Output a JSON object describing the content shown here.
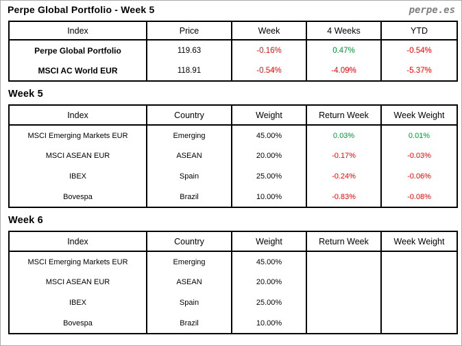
{
  "page": {
    "title": "Perpe Global Portfolio - Week 5",
    "brand": "perpe.es"
  },
  "colors": {
    "positive": "#009933",
    "negative": "#ff0000",
    "brand_gray": "#808080"
  },
  "summary_table": {
    "headers": [
      "Index",
      "Price",
      "Week",
      "4 Weeks",
      "YTD"
    ],
    "rows": [
      {
        "index": "Perpe Global Portfolio",
        "price": "119.63",
        "week": "-0.16%",
        "four_weeks": "0.47%",
        "ytd": "-0.54%"
      },
      {
        "index": "MSCI AC World EUR",
        "price": "118.91",
        "week": "-0.54%",
        "four_weeks": "-4.09%",
        "ytd": "-5.37%"
      }
    ]
  },
  "week5": {
    "heading": "Week 5",
    "headers": [
      "Index",
      "Country",
      "Weight",
      "Return Week",
      "Week Weight"
    ],
    "rows": [
      {
        "index": "MSCI Emerging Markets EUR",
        "country": "Emerging",
        "weight": "45.00%",
        "return_week": "0.03%",
        "week_weight": "0.01%"
      },
      {
        "index": "MSCI ASEAN EUR",
        "country": "ASEAN",
        "weight": "20.00%",
        "return_week": "-0.17%",
        "week_weight": "-0.03%"
      },
      {
        "index": "IBEX",
        "country": "Spain",
        "weight": "25.00%",
        "return_week": "-0.24%",
        "week_weight": "-0.06%"
      },
      {
        "index": "Bovespa",
        "country": "Brazil",
        "weight": "10.00%",
        "return_week": "-0.83%",
        "week_weight": "-0.08%"
      }
    ]
  },
  "week6": {
    "heading": "Week 6",
    "headers": [
      "Index",
      "Country",
      "Weight",
      "Return Week",
      "Week Weight"
    ],
    "rows": [
      {
        "index": "MSCI Emerging Markets EUR",
        "country": "Emerging",
        "weight": "45.00%",
        "return_week": "",
        "week_weight": ""
      },
      {
        "index": "MSCI ASEAN EUR",
        "country": "ASEAN",
        "weight": "20.00%",
        "return_week": "",
        "week_weight": ""
      },
      {
        "index": "IBEX",
        "country": "Spain",
        "weight": "25.00%",
        "return_week": "",
        "week_weight": ""
      },
      {
        "index": "Bovespa",
        "country": "Brazil",
        "weight": "10.00%",
        "return_week": "",
        "week_weight": ""
      }
    ]
  }
}
